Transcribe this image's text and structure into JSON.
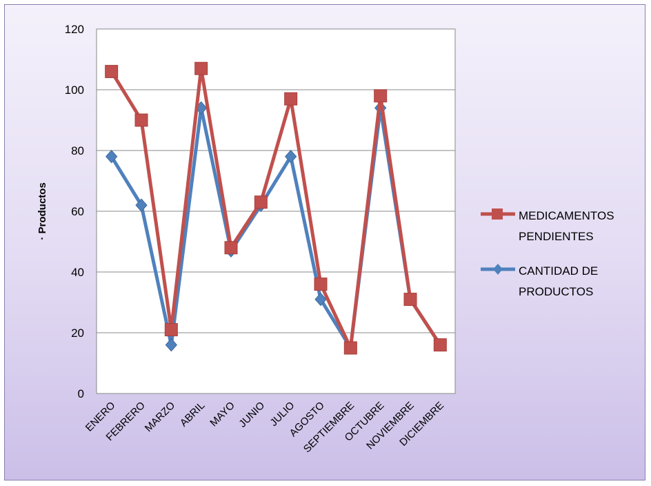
{
  "chart_data": {
    "type": "line",
    "title": "",
    "xlabel": "",
    "ylabel": "· Productos",
    "ylim": [
      0,
      120
    ],
    "yticks": [
      0,
      20,
      40,
      60,
      80,
      100,
      120
    ],
    "grid": "horizontal",
    "legend_position": "right",
    "categories": [
      "ENERO",
      "FEBRERO",
      "MARZO",
      "ABRIL",
      "MAYO",
      "JUNIO",
      "JULIO",
      "AGOSTO",
      "SEPTIEMBRE",
      "OCTUBRE",
      "NOVIEMBRE",
      "DICIEMBRE"
    ],
    "series": [
      {
        "name_lines": [
          "MEDICAMENTOS",
          "PENDIENTES"
        ],
        "color": "#c0504d",
        "marker": "square",
        "values": [
          106,
          90,
          21,
          107,
          48,
          63,
          97,
          36,
          15,
          98,
          31,
          16
        ]
      },
      {
        "name_lines": [
          "CANTIDAD DE",
          "PRODUCTOS"
        ],
        "color": "#4f81bd",
        "marker": "diamond",
        "values": [
          78,
          62,
          16,
          94,
          47,
          62,
          78,
          31,
          15,
          94,
          31,
          16
        ]
      }
    ]
  }
}
